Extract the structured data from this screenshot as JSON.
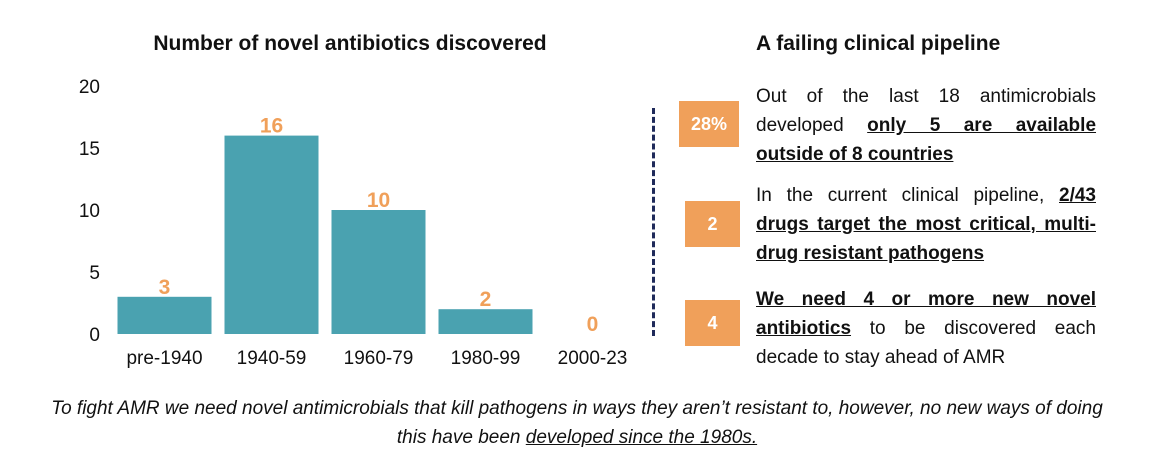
{
  "chart_data": {
    "type": "bar",
    "title": "Number of novel antibiotics discovered",
    "categories": [
      "pre-1940",
      "1940-59",
      "1960-79",
      "1980-99",
      "2000-23"
    ],
    "values": [
      3,
      16,
      10,
      2,
      0
    ],
    "data_labels": [
      "3",
      "16",
      "10",
      "2",
      "0"
    ],
    "yticks": [
      "0",
      "5",
      "10",
      "15",
      "20"
    ],
    "ylim": [
      0,
      20
    ],
    "xlabel": "",
    "ylabel": "",
    "grid": false,
    "bar_color": "#4aa2b0",
    "label_color": "#f0a05a"
  },
  "panel": {
    "title": "A failing clinical pipeline",
    "badge_color": "#f0a05a",
    "divider_color": "#1f2a5a",
    "stats": [
      {
        "badge": "28%",
        "pre": "Out of the last 18 antimicrobials developed ",
        "emph": "only 5 are available outside of 8 countries",
        "post": ""
      },
      {
        "badge": "2",
        "pre": "In the current clinical pipeline, ",
        "emph": "2/43 drugs target the most critical, multi-drug resistant pathogens",
        "post": ""
      },
      {
        "badge": "4",
        "pre": "",
        "emph": "We need 4 or more new novel antibiotics",
        "post": " to be discovered each decade to stay ahead of AMR"
      }
    ]
  },
  "footer": {
    "text": "To fight AMR we need novel antimicrobials that kill pathogens in ways they aren’t resistant to, however, no new ways of doing this have been ",
    "emph": "developed since the 1980s."
  }
}
